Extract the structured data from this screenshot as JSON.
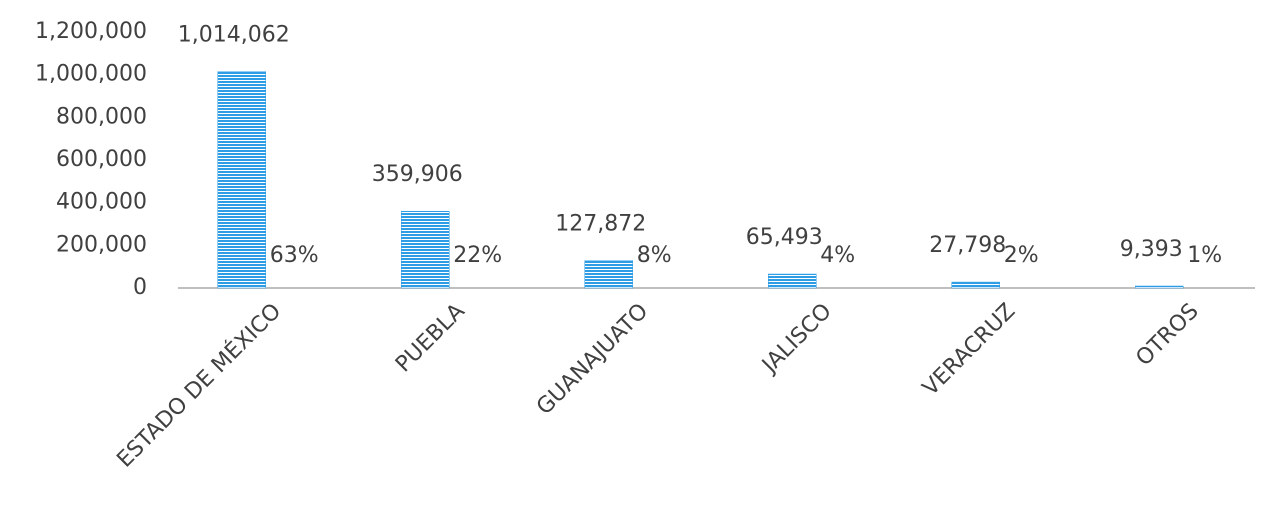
{
  "chart_data": {
    "type": "bar",
    "categories": [
      "ESTADO DE MÉXICO",
      "PUEBLA",
      "GUANAJUATO",
      "JALISCO",
      "VERACRUZ",
      "OTROS"
    ],
    "values": [
      1014062,
      359906,
      127872,
      65493,
      27798,
      9393
    ],
    "value_labels": [
      "1,014,062",
      "359,906",
      "127,872",
      "65,493",
      "27,798",
      "9,393"
    ],
    "percent_labels": [
      "63%",
      "22%",
      "8%",
      "4%",
      "2%",
      "1%"
    ],
    "color": "#2e9de6",
    "ylim": [
      0,
      1200000
    ],
    "yticks": [
      0,
      {
        "value": 200000,
        "label": "200,000"
      },
      {
        "value": 400000,
        "label": "400,000"
      },
      {
        "value": 600000,
        "label": "600,000"
      },
      {
        "value": 800000,
        "label": "800,000"
      },
      {
        "value": 1000000,
        "label": "1,000,000"
      },
      {
        "value": 1200000,
        "label": "1,200,000"
      }
    ],
    "grid": false
  }
}
